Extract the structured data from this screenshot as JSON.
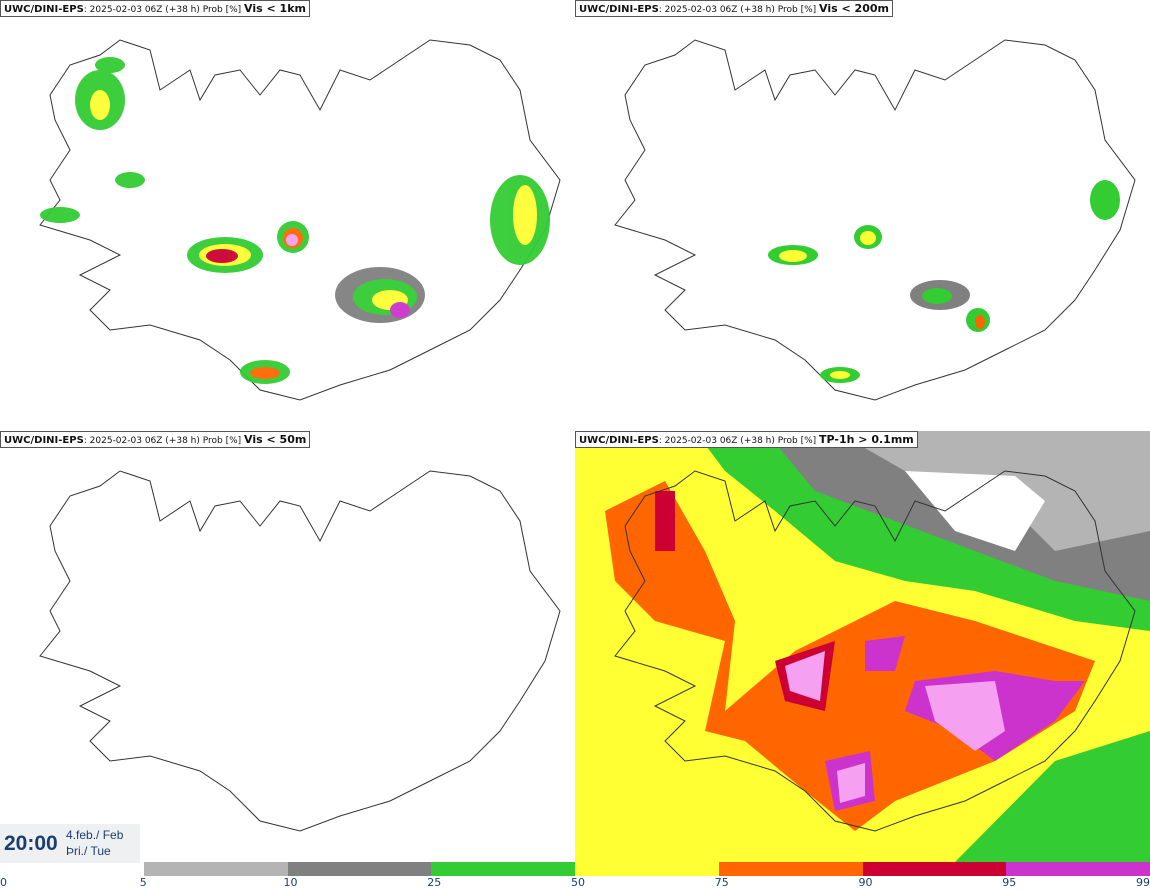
{
  "panels": [
    {
      "source": "UWC/DINI-EPS",
      "meta": ": 2025-02-03 06Z (+38 h) Prob [%] ",
      "variable": "Vis < 1km"
    },
    {
      "source": "UWC/DINI-EPS",
      "meta": ": 2025-02-03 06Z (+38 h) Prob [%] ",
      "variable": "Vis < 200m"
    },
    {
      "source": "UWC/DINI-EPS",
      "meta": ": 2025-02-03 06Z (+38 h) Prob [%] ",
      "variable": "Vis < 50m"
    },
    {
      "source": "UWC/DINI-EPS",
      "meta": ": 2025-02-03 06Z (+38 h) Prob [%] ",
      "variable": "TP-1h > 0.1mm"
    }
  ],
  "valid_time": {
    "time": "20:00",
    "date": "4.feb./ Feb",
    "weekday": "Þri./ Tue"
  },
  "colorbar": {
    "ticks": [
      "0",
      "5",
      "10",
      "25",
      "50",
      "75",
      "90",
      "95",
      "99"
    ],
    "segments": [
      {
        "from": 5,
        "to": 10,
        "color": "#b4b4b4"
      },
      {
        "from": 10,
        "to": 25,
        "color": "#808080"
      },
      {
        "from": 25,
        "to": 50,
        "color": "#33cc33"
      },
      {
        "from": 50,
        "to": 75,
        "color": "#ffff33"
      },
      {
        "from": 75,
        "to": 90,
        "color": "#ff6600"
      },
      {
        "from": 90,
        "to": 95,
        "color": "#cc0033"
      },
      {
        "from": 95,
        "to": 99,
        "color": "#cc33cc"
      }
    ]
  }
}
